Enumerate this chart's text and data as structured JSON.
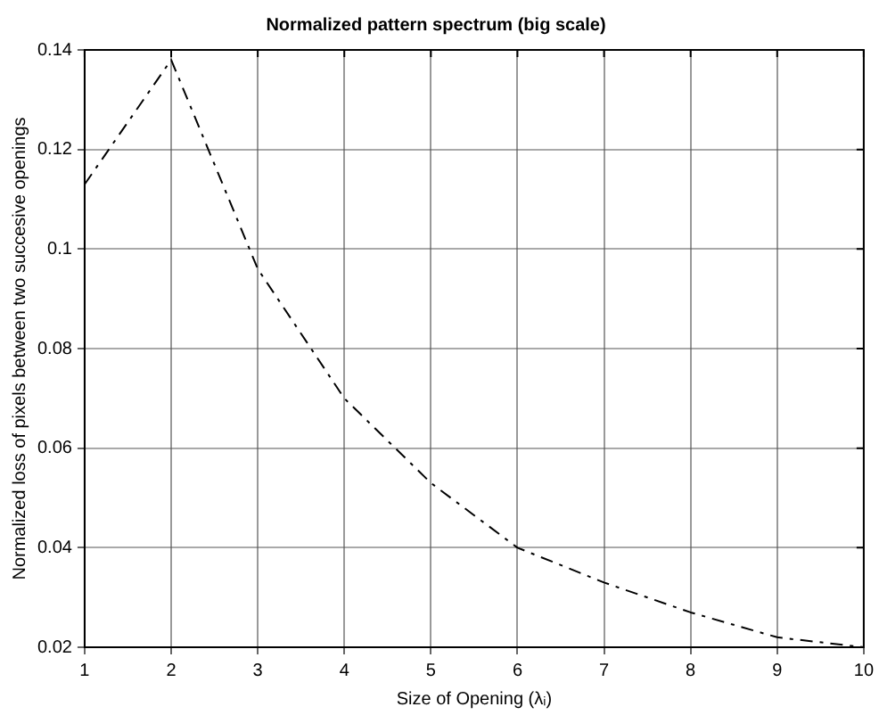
{
  "chart_data": {
    "type": "line",
    "title": "Normalized pattern spectrum (big scale)",
    "xlabel": "Size of Opening (λᵢ)",
    "ylabel": "Normalized loss of pixels between two succesive openings",
    "x": [
      1,
      2,
      3,
      4,
      5,
      6,
      7,
      8,
      9,
      10
    ],
    "series": [
      {
        "color": "#000000",
        "values": [
          0.113,
          0.138,
          0.096,
          0.07,
          0.053,
          0.04,
          0.033,
          0.027,
          0.022,
          0.02
        ]
      }
    ],
    "xlim": [
      1,
      10
    ],
    "xticks": [
      1,
      2,
      3,
      4,
      5,
      6,
      7,
      8,
      9,
      10
    ],
    "ylim": [
      0.02,
      0.14
    ],
    "yticks": [
      0.02,
      0.04,
      0.06,
      0.08,
      0.1,
      0.12,
      0.14
    ],
    "grid": true,
    "legend": false,
    "marker": "none",
    "line_style": "dashed"
  }
}
